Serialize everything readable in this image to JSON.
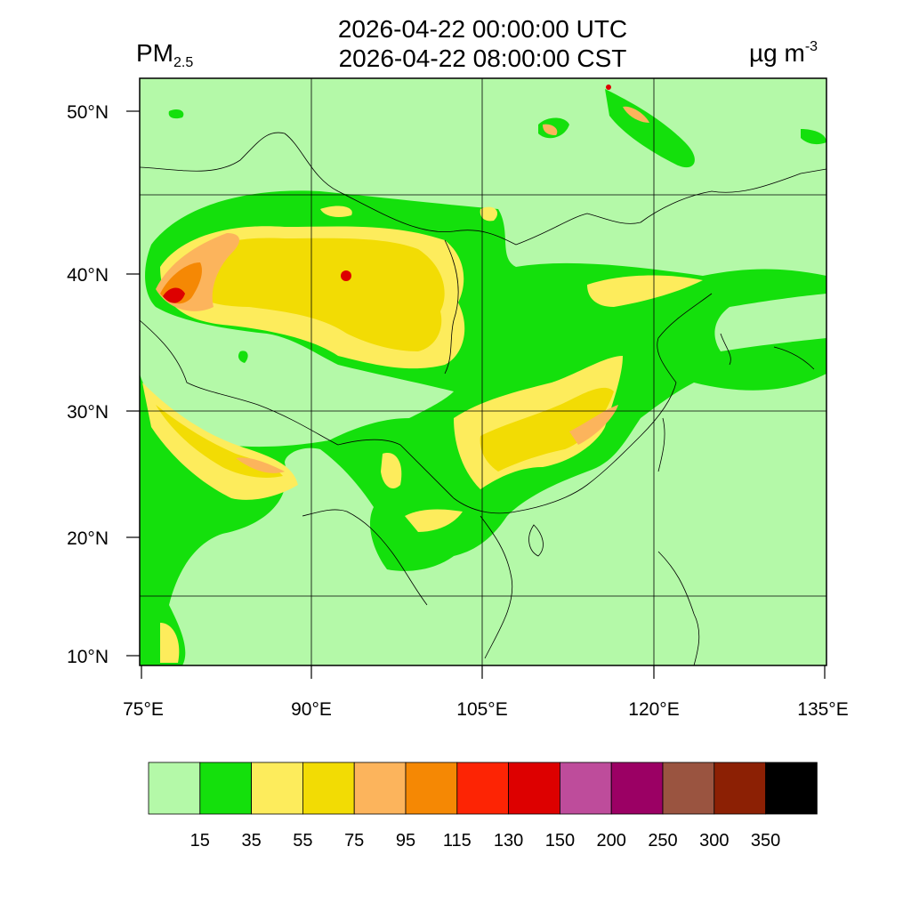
{
  "header": {
    "time_utc": "2026-04-22 00:00:00 UTC",
    "time_cst": "2026-04-22 08:00:00 CST",
    "variable_main": "PM",
    "variable_sub": "2.5",
    "unit_main": "µg m",
    "unit_sup": "-3"
  },
  "axes": {
    "lat_labels": [
      "50°N",
      "40°N",
      "30°N",
      "20°N",
      "10°N"
    ],
    "lon_labels": [
      "75°E",
      "90°E",
      "105°E",
      "120°E",
      "135°E"
    ]
  },
  "colorbar": {
    "levels": [
      "15",
      "35",
      "55",
      "75",
      "95",
      "115",
      "130",
      "150",
      "200",
      "250",
      "300",
      "350"
    ],
    "colors": [
      "#b4f9a8",
      "#14e00c",
      "#fdec5c",
      "#f2dc04",
      "#fcb45c",
      "#f58804",
      "#fd2404",
      "#dd0000",
      "#be4c9b",
      "#9b0064",
      "#9a5440",
      "#8c2004",
      "#000000"
    ]
  }
}
